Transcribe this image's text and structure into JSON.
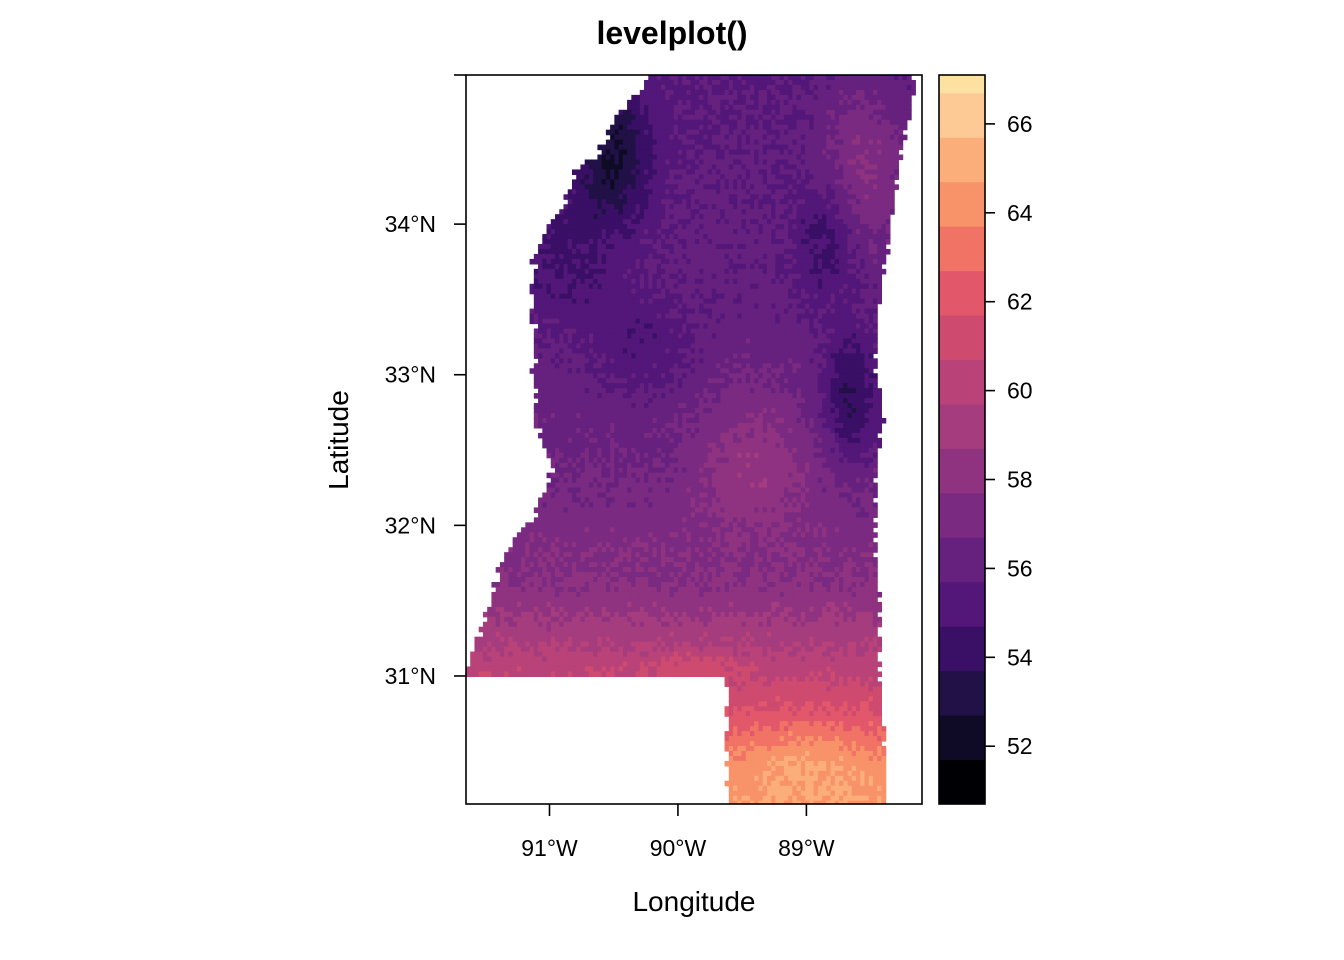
{
  "chart_data": {
    "type": "heatmap",
    "title": "levelplot()",
    "xlabel": "Longitude",
    "ylabel": "Latitude",
    "xlim": [
      -91.65,
      -88.1
    ],
    "ylim": [
      30.15,
      34.99
    ],
    "x_ticks": [
      {
        "value": -91,
        "label": "91°W"
      },
      {
        "value": -90,
        "label": "90°W"
      },
      {
        "value": -89,
        "label": "89°W"
      }
    ],
    "y_ticks": [
      {
        "value": 34,
        "label": "34°N"
      },
      {
        "value": 33,
        "label": "33°N"
      },
      {
        "value": 32,
        "label": "32°N"
      },
      {
        "value": 31,
        "label": "31°N"
      }
    ],
    "colorkey": {
      "range": [
        50.7,
        67.1
      ],
      "breaks": [
        50.7,
        51.7,
        52.7,
        53.7,
        54.7,
        55.7,
        56.7,
        57.7,
        58.7,
        59.7,
        60.7,
        61.7,
        62.7,
        63.7,
        64.7,
        65.7,
        66.7,
        67.1
      ],
      "colors": [
        "#000004",
        "#0f0b26",
        "#211147",
        "#3a0f66",
        "#521778",
        "#66207e",
        "#7a2a81",
        "#8f3381",
        "#a43c7e",
        "#b94378",
        "#cf4a6f",
        "#e2586a",
        "#f17365",
        "#f89269",
        "#fcae7a",
        "#fdca95",
        "#fde1a3",
        "#fcfdbf"
      ],
      "ticks": [
        52,
        54,
        56,
        58,
        60,
        62,
        64,
        66
      ]
    }
  }
}
